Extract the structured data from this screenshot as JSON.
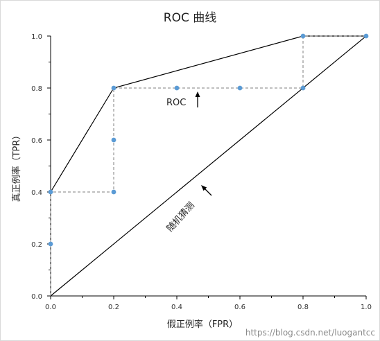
{
  "chart_data": {
    "type": "line",
    "title": "ROC 曲线",
    "xlabel": "假正例率（FPR）",
    "ylabel": "真正例率（TPR）",
    "xlim": [
      0,
      1
    ],
    "ylim": [
      0,
      1
    ],
    "xticks": [
      0,
      0.2,
      0.4,
      0.6,
      0.8,
      1
    ],
    "yticks": [
      0,
      0.2,
      0.4,
      0.6,
      0.8,
      1
    ],
    "xtick_labels": [
      "0.0",
      "0.2",
      "0.4",
      "0.6",
      "0.8",
      "1.0"
    ],
    "ytick_labels": [
      "0.0",
      "0.2",
      "0.4",
      "0.6",
      "0.8",
      "1.0"
    ],
    "grid": false,
    "point_color": "#5b9bd5",
    "line_color": "#000000",
    "series": [
      {
        "role": "roc-curve",
        "x": [
          0,
          0.2,
          0.8,
          1
        ],
        "y": [
          0.4,
          0.8,
          1,
          1
        ]
      },
      {
        "role": "random-guess",
        "x": [
          0,
          1
        ],
        "y": [
          0,
          1
        ]
      },
      {
        "role": "step-path",
        "style": "dashed",
        "x": [
          0,
          0,
          0,
          0.2,
          0.2,
          0.2,
          0.4,
          0.6,
          0.8,
          0.8,
          1
        ],
        "y": [
          0,
          0.2,
          0.4,
          0.4,
          0.6,
          0.8,
          0.8,
          0.8,
          0.8,
          1,
          1
        ]
      },
      {
        "role": "points",
        "x": [
          0,
          0,
          0.2,
          0.2,
          0.2,
          0.4,
          0.6,
          0.8,
          0.8,
          1
        ],
        "y": [
          0.2,
          0.4,
          0.4,
          0.6,
          0.8,
          0.8,
          0.8,
          0.8,
          1,
          1
        ]
      }
    ],
    "annotations": [
      {
        "text": "ROC",
        "arrow": "up"
      },
      {
        "text": "随机猜测",
        "arrow": "up-left"
      }
    ]
  },
  "watermark": "https://blog.csdn.net/luogantcc"
}
